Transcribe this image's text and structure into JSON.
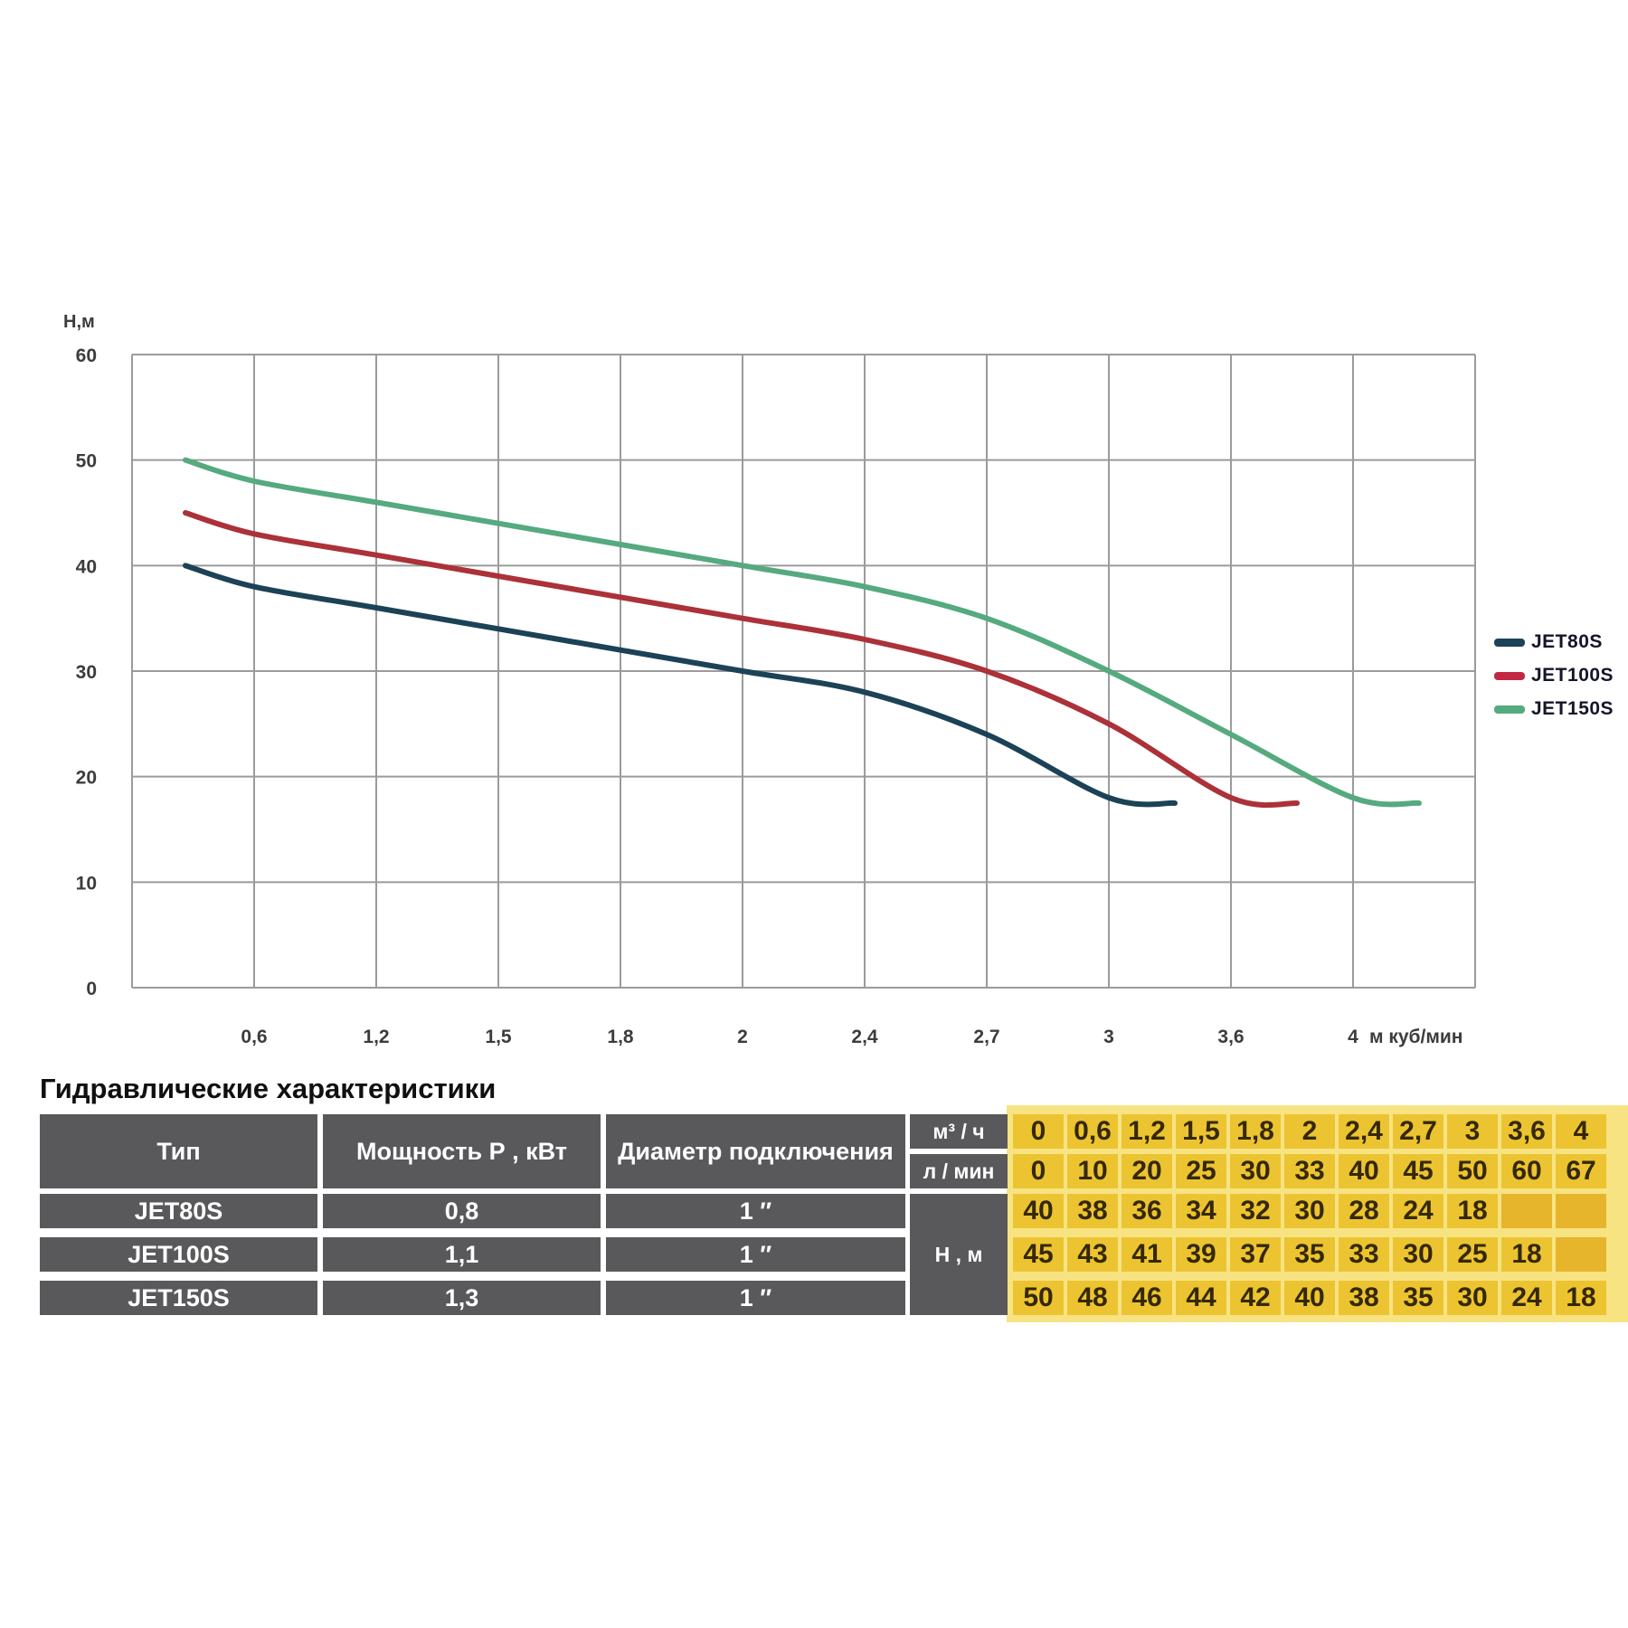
{
  "chart_data": {
    "type": "line",
    "title": "",
    "ylabel": "Н,м",
    "x_unit_label": "м куб/мин",
    "ylim": [
      0,
      60
    ],
    "y_ticks": [
      0,
      10,
      20,
      30,
      40,
      50,
      60
    ],
    "categories": [
      "0",
      "0,6",
      "1,2",
      "1,5",
      "1,8",
      "2",
      "2,4",
      "2,7",
      "3",
      "3,6",
      "4"
    ],
    "x_tick_labels": [
      "0,6",
      "1,2",
      "1,5",
      "1,8",
      "2",
      "2,4",
      "2,7",
      "3",
      "3,6",
      "4"
    ],
    "grid": true,
    "legend_position": "right",
    "series": [
      {
        "name": "JET80S",
        "color": "#1c4257",
        "values": [
          40,
          38,
          36,
          34,
          32,
          30,
          28,
          24,
          18,
          null,
          null
        ]
      },
      {
        "name": "JET100S",
        "color": "#ac3138",
        "values": [
          45,
          43,
          41,
          39,
          37,
          35,
          33,
          30,
          25,
          18,
          null
        ]
      },
      {
        "name": "JET150S",
        "color": "#55aa7f",
        "values": [
          50,
          48,
          46,
          44,
          42,
          40,
          38,
          35,
          30,
          24,
          18
        ]
      }
    ]
  },
  "legend": {
    "items": [
      {
        "label": "JET80S",
        "color": "#1c4257"
      },
      {
        "label": "JET100S",
        "color": "#c22843"
      },
      {
        "label": "JET150S",
        "color": "#55aa7f"
      }
    ]
  },
  "table": {
    "title": "Гидравлические характеристики",
    "headers": {
      "type": "Тип",
      "power": "Мощность Р , кВт",
      "diameter": "Диаметр подключения",
      "m3h": "м³ / ч",
      "lmin": "л / мин",
      "head": "Н , м"
    },
    "flow_m3h": [
      "0",
      "0,6",
      "1,2",
      "1,5",
      "1,8",
      "2",
      "2,4",
      "2,7",
      "3",
      "3,6",
      "4"
    ],
    "flow_lmin": [
      "0",
      "10",
      "20",
      "25",
      "30",
      "33",
      "40",
      "45",
      "50",
      "60",
      "67"
    ],
    "rows": [
      {
        "type": "JET80S",
        "power": "0,8",
        "diameter": "1 ″",
        "head": [
          "40",
          "38",
          "36",
          "34",
          "32",
          "30",
          "28",
          "24",
          "18",
          "",
          ""
        ]
      },
      {
        "type": "JET100S",
        "power": "1,1",
        "diameter": "1 ″",
        "head": [
          "45",
          "43",
          "41",
          "39",
          "37",
          "35",
          "33",
          "30",
          "25",
          "18",
          ""
        ]
      },
      {
        "type": "JET150S",
        "power": "1,3",
        "diameter": "1 ″",
        "head": [
          "50",
          "48",
          "46",
          "44",
          "42",
          "40",
          "38",
          "35",
          "30",
          "24",
          "18"
        ]
      }
    ],
    "colors": {
      "cell_filled": "#ecc431",
      "cell_empty": "#e7b52b",
      "pad": "#f8e382",
      "dark": "#59595b",
      "grid_line": "#9b9b9b",
      "tick_text": "#3c3c3c"
    }
  }
}
